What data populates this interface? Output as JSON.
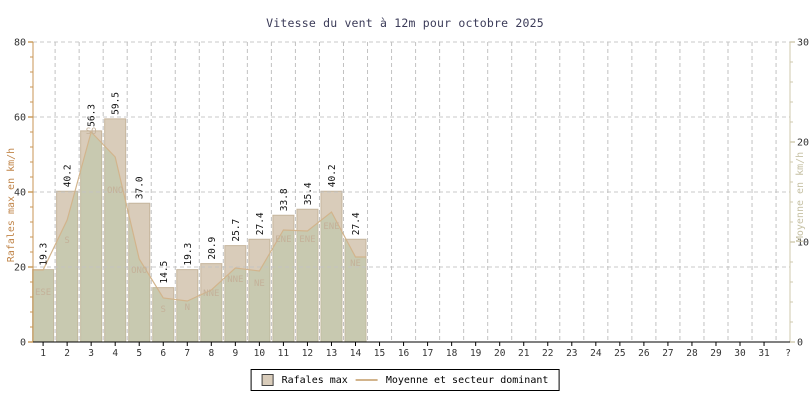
{
  "title": "Vitesse du vent à 12m pour octobre 2025",
  "legend": {
    "bar_label": "Rafales max",
    "line_label": "Moyenne et secteur dominant"
  },
  "chart_data": {
    "type": "bar",
    "title": "Vitesse du vent à 12m pour octobre 2025",
    "x_categories": [
      "1",
      "2",
      "3",
      "4",
      "5",
      "6",
      "7",
      "8",
      "9",
      "10",
      "11",
      "12",
      "13",
      "14",
      "15",
      "16",
      "17",
      "18",
      "19",
      "20",
      "21",
      "22",
      "23",
      "24",
      "25",
      "26",
      "27",
      "28",
      "29",
      "30",
      "31",
      "?"
    ],
    "series": [
      {
        "name": "Rafales max",
        "type": "bar",
        "axis": "left",
        "unit": "km/h",
        "values": [
          19.3,
          40.2,
          56.3,
          59.5,
          37.0,
          14.5,
          19.3,
          20.9,
          25.7,
          27.4,
          33.8,
          35.4,
          40.2,
          27.4
        ]
      },
      {
        "name": "Moyenne",
        "type": "line",
        "axis": "right",
        "unit": "km/h",
        "values": [
          7.2,
          12.2,
          21.0,
          18.5,
          8.3,
          4.4,
          4.1,
          5.2,
          7.4,
          7.1,
          11.2,
          11.1,
          13.0,
          8.5
        ]
      }
    ],
    "bar_value_labels": [
      "19.3",
      "40.2",
      "56.3",
      "59.5",
      "37.0",
      "14.5",
      "19.3",
      "20.9",
      "25.7",
      "27.4",
      "33.8",
      "35.4",
      "40.2",
      "27.4"
    ],
    "dominant_sectors": [
      "ESE",
      "S",
      "SO",
      "ONO",
      "ONO",
      "S",
      "N",
      "NNE",
      "NNE",
      "NE",
      "ENE",
      "ENE",
      "ENE",
      "NE"
    ],
    "left_axis": {
      "label": "Rafales max en km/h",
      "range": [
        0,
        80
      ],
      "major_ticks": [
        0,
        20,
        40,
        60,
        80
      ],
      "minor_step": 4
    },
    "right_axis": {
      "label": "Moyenne en km/h",
      "range": [
        0,
        30
      ],
      "major_ticks": [
        0,
        10,
        20,
        30
      ],
      "minor_step": 2
    },
    "grid": "dashed",
    "legend_position": "bottom-center",
    "colors": {
      "title": "#3b3b58",
      "bar_fill": "#d9ccba",
      "bar_stroke": "#c6b59c",
      "area_overlay": "rgba(183,197,166,0.5)",
      "line": "#d2b48c",
      "left_axis": "#c89654",
      "left_axis_title": "#c08448",
      "right_axis": "#cfc9ae",
      "right_axis_title": "#c6c1a4",
      "x_axis": "#000000",
      "grid": "#c2c2c2",
      "tick_text": "#333333",
      "value_label": "#111111",
      "sector_label": "#c4b199"
    },
    "layout": {
      "dir_label_y": [
        295,
        243,
        134,
        193,
        273,
        312,
        310,
        296,
        282,
        286,
        242,
        242,
        229,
        266
      ]
    }
  }
}
